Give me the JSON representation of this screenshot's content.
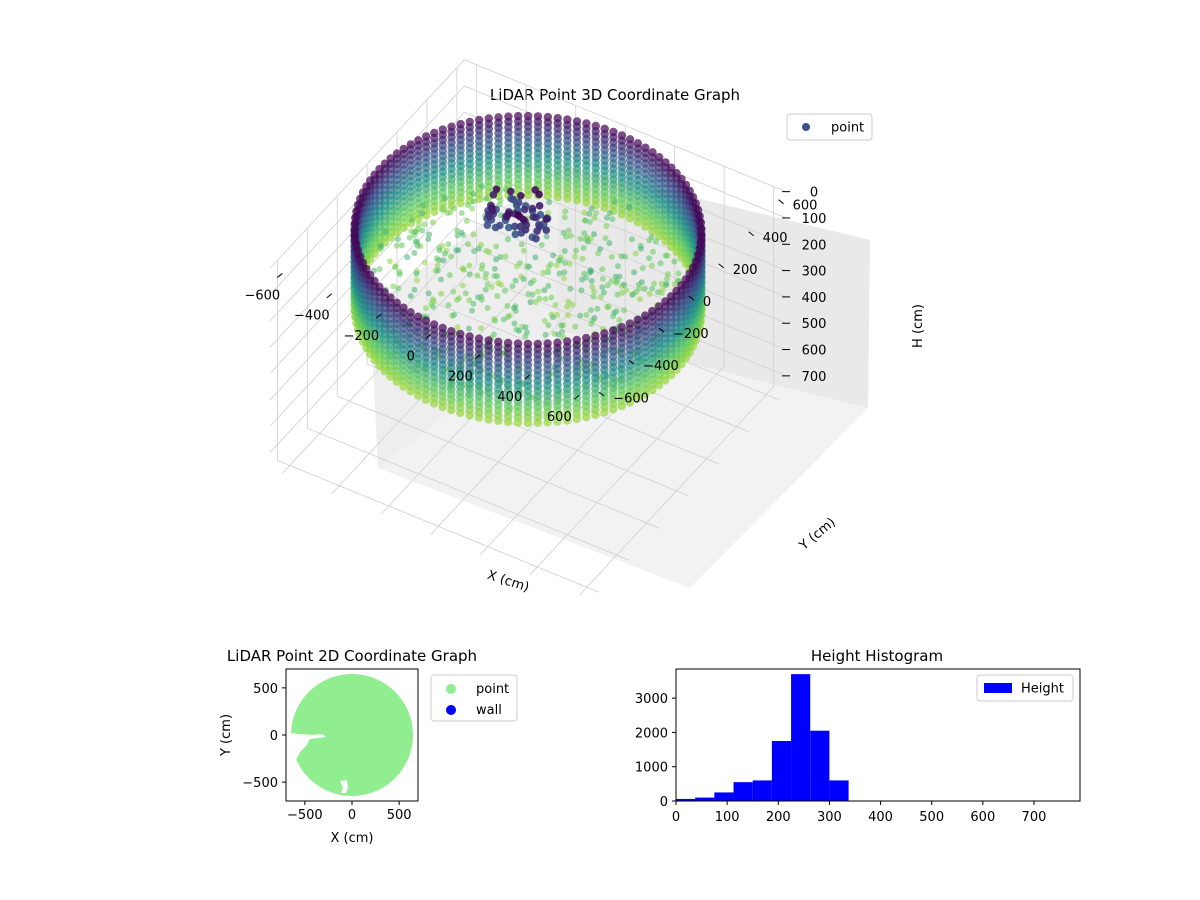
{
  "chart_data": [
    {
      "type": "scatter",
      "projection": "3d",
      "title": "LiDAR Point 3D Coordinate Graph",
      "xlabel": "X (cm)",
      "ylabel": "Y (cm)",
      "zlabel": "H (cm)",
      "xlim": [
        -650,
        650
      ],
      "ylim": [
        -650,
        650
      ],
      "zlim": [
        0,
        760
      ],
      "z_inverted": true,
      "xticks": [
        -600,
        -400,
        -200,
        0,
        200,
        400,
        600
      ],
      "yticks": [
        -600,
        -400,
        -200,
        0,
        200,
        400,
        600
      ],
      "zticks": [
        0,
        100,
        200,
        300,
        400,
        500,
        600,
        700
      ],
      "grid": true,
      "colormap": "viridis",
      "legend": {
        "placement": "upper-right",
        "entries": [
          {
            "label": "point",
            "color": "#3b528b"
          }
        ]
      },
      "series": [
        {
          "name": "point",
          "shape": "circular wall",
          "wall_radius": 600,
          "wall_height_range": [
            0,
            300
          ],
          "floor_height_range": [
            200,
            300
          ],
          "cluster_near_center_height_range": [
            0,
            100
          ]
        }
      ]
    },
    {
      "type": "scatter",
      "title": "LiDAR Point 2D Coordinate Graph",
      "xlabel": "X (cm)",
      "ylabel": "Y (cm)",
      "xlim": [
        -700,
        700
      ],
      "ylim": [
        -700,
        700
      ],
      "xticks": [
        -500,
        0,
        500
      ],
      "yticks": [
        -500,
        0,
        500
      ],
      "legend": {
        "placement": "outside-right",
        "entries": [
          {
            "label": "point",
            "color": "#90ee90"
          },
          {
            "label": "wall",
            "color": "#0000ff"
          }
        ]
      },
      "series": [
        {
          "name": "point",
          "shape": "filled disc",
          "radius": 620,
          "color": "#90ee90"
        }
      ]
    },
    {
      "type": "bar",
      "subtype": "histogram",
      "title": "Height Histogram",
      "xlim": [
        0,
        790
      ],
      "ylim": [
        0,
        3850
      ],
      "xticks": [
        0,
        100,
        200,
        300,
        400,
        500,
        600,
        700
      ],
      "yticks": [
        0,
        1000,
        2000,
        3000
      ],
      "legend": {
        "placement": "upper-right",
        "entries": [
          {
            "label": "Height",
            "color": "#0000ff"
          }
        ]
      },
      "series": [
        {
          "name": "Height",
          "color": "#0000ff",
          "bin_edges": [
            0,
            37.5,
            75,
            112.5,
            150,
            187.5,
            225,
            262.5,
            300,
            337.5,
            375,
            412.5,
            450,
            487.5,
            525,
            562.5,
            600,
            637.5,
            675,
            712.5,
            750,
            787.5
          ],
          "counts": [
            60,
            100,
            250,
            550,
            600,
            1750,
            3700,
            2050,
            600,
            0,
            0,
            0,
            0,
            0,
            0,
            0,
            0,
            0,
            0,
            0,
            0
          ]
        }
      ]
    }
  ]
}
